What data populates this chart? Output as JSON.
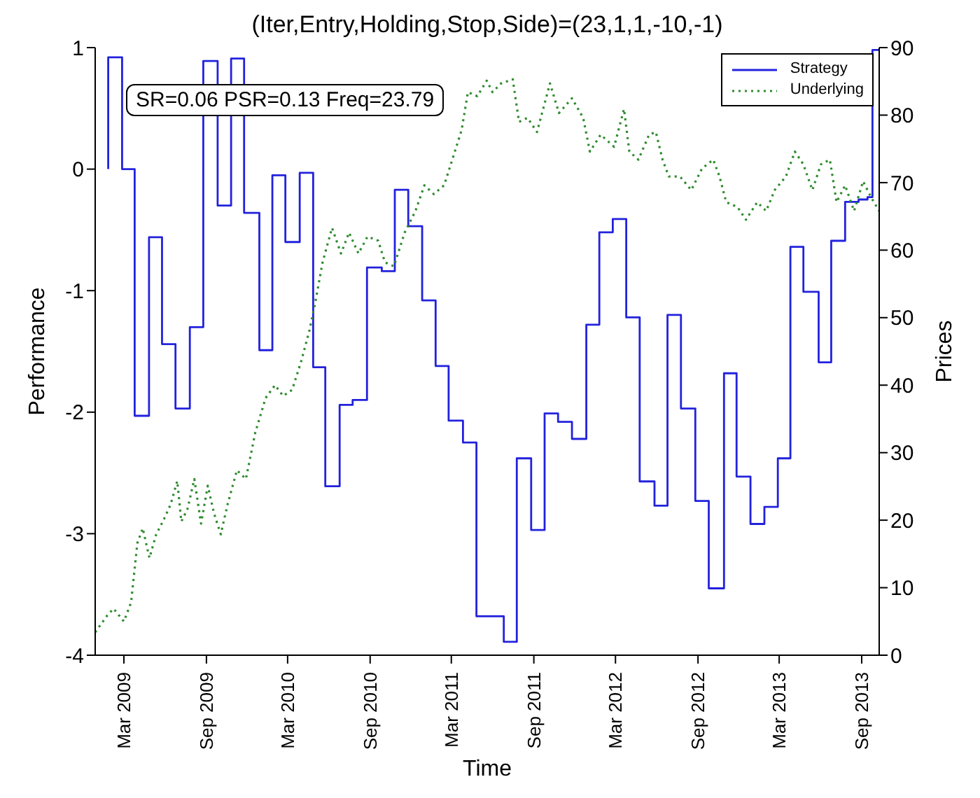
{
  "chart_data": {
    "type": "line",
    "title": "(Iter,Entry,Holding,Stop,Side)=(23,1,1,-10,-1)",
    "xlabel": "Time",
    "ylabel": "Performance",
    "y2label": "Prices",
    "annotations": [
      "SR=0.06 PSR=0.13 Freq=23.79"
    ],
    "xlim": [
      "2008-12-27",
      "2013-10-10"
    ],
    "xticks": [
      {
        "value": "2009-03-01",
        "label": "Mar 2009"
      },
      {
        "value": "2009-09-01",
        "label": "Sep 2009"
      },
      {
        "value": "2010-03-01",
        "label": "Mar 2010"
      },
      {
        "value": "2010-09-01",
        "label": "Sep 2010"
      },
      {
        "value": "2011-03-01",
        "label": "Mar 2011"
      },
      {
        "value": "2011-09-01",
        "label": "Sep 2011"
      },
      {
        "value": "2012-03-01",
        "label": "Mar 2012"
      },
      {
        "value": "2012-09-01",
        "label": "Sep 2012"
      },
      {
        "value": "2013-03-01",
        "label": "Mar 2013"
      },
      {
        "value": "2013-09-01",
        "label": "Sep 2013"
      }
    ],
    "ylim": [
      -4,
      1
    ],
    "yticks": [
      -4,
      -3,
      -2,
      -1,
      0,
      1
    ],
    "y2lim": [
      0,
      90
    ],
    "y2ticks": [
      0,
      10,
      20,
      30,
      40,
      50,
      60,
      70,
      80,
      90
    ],
    "grid": false,
    "legend": "top right",
    "marker": "none",
    "series": [
      {
        "name": "Strategy",
        "type": "step",
        "color": "#2222dd",
        "line_style": "solid",
        "x": [
          "2009-01-25",
          "2009-01-25",
          "2009-02-25",
          "2009-03-25",
          "2009-04-26",
          "2009-05-25",
          "2009-06-24",
          "2009-07-26",
          "2009-08-25",
          "2009-09-26",
          "2009-10-26",
          "2009-11-24",
          "2009-12-28",
          "2010-01-26",
          "2010-02-24",
          "2010-03-28",
          "2010-04-27",
          "2010-05-24",
          "2010-06-25",
          "2010-07-24",
          "2010-08-25",
          "2010-09-27",
          "2010-10-26",
          "2010-11-25",
          "2010-12-26",
          "2011-01-25",
          "2011-02-23",
          "2011-03-27",
          "2011-04-26",
          "2011-06-26",
          "2011-07-25",
          "2011-08-26",
          "2011-09-25",
          "2011-10-25",
          "2011-11-25",
          "2011-12-27",
          "2012-01-25",
          "2012-02-24",
          "2012-03-25",
          "2012-04-24",
          "2012-05-27",
          "2012-06-25",
          "2012-07-25",
          "2012-08-26",
          "2012-09-25",
          "2012-10-29",
          "2012-11-26",
          "2012-12-27",
          "2013-01-27",
          "2013-02-26",
          "2013-03-26",
          "2013-04-24",
          "2013-05-28",
          "2013-06-25",
          "2013-07-26",
          "2013-08-25",
          "2013-09-14",
          "2013-09-25",
          "2013-10-10"
        ],
        "values": [
          0.0,
          0.92,
          0.0,
          -2.03,
          -0.56,
          -1.44,
          -1.97,
          -1.3,
          0.89,
          -0.3,
          0.91,
          -0.36,
          -1.49,
          -0.05,
          -0.6,
          -0.03,
          -1.63,
          -2.61,
          -1.94,
          -1.9,
          -0.81,
          -0.84,
          -0.17,
          -0.47,
          -1.08,
          -1.62,
          -2.07,
          -2.25,
          -3.68,
          -3.89,
          -2.38,
          -2.97,
          -2.01,
          -2.08,
          -2.22,
          -1.28,
          -0.52,
          -0.41,
          -1.22,
          -2.57,
          -2.77,
          -1.2,
          -1.97,
          -2.73,
          -3.45,
          -1.68,
          -2.53,
          -2.92,
          -2.78,
          -2.38,
          -0.64,
          -1.01,
          -1.59,
          -0.59,
          -0.27,
          -0.25,
          -0.23,
          0.98,
          0.98
        ]
      },
      {
        "name": "Underlying",
        "axis": "y2",
        "color": "#2e8b2e",
        "line_style": "dotted",
        "x": [
          "2008-12-27",
          "2009-01-23",
          "2009-02-06",
          "2009-03-01",
          "2009-03-17",
          "2009-03-31",
          "2009-04-12",
          "2009-04-27",
          "2009-05-12",
          "2009-05-29",
          "2009-06-13",
          "2009-06-28",
          "2009-07-07",
          "2009-07-21",
          "2009-08-05",
          "2009-08-20",
          "2009-09-04",
          "2009-09-18",
          "2009-10-03",
          "2009-10-18",
          "2009-11-08",
          "2009-11-28",
          "2009-12-19",
          "2010-01-11",
          "2010-02-01",
          "2010-02-19",
          "2010-03-11",
          "2010-04-01",
          "2010-04-19",
          "2010-05-01",
          "2010-05-18",
          "2010-06-08",
          "2010-06-28",
          "2010-07-16",
          "2010-08-06",
          "2010-08-26",
          "2010-09-19",
          "2010-10-04",
          "2010-10-24",
          "2010-11-17",
          "2010-12-11",
          "2010-12-31",
          "2011-01-21",
          "2011-02-13",
          "2011-03-06",
          "2011-03-24",
          "2011-04-07",
          "2011-04-28",
          "2011-05-19",
          "2011-06-01",
          "2011-06-20",
          "2011-07-16",
          "2011-07-30",
          "2011-08-18",
          "2011-09-08",
          "2011-10-07",
          "2011-10-27",
          "2011-11-25",
          "2011-12-20",
          "2012-01-04",
          "2012-01-28",
          "2012-02-27",
          "2012-03-20",
          "2012-04-01",
          "2012-04-21",
          "2012-05-15",
          "2012-05-30",
          "2012-06-14",
          "2012-06-28",
          "2012-07-23",
          "2012-08-17",
          "2012-09-10",
          "2012-10-05",
          "2012-10-19",
          "2012-11-03",
          "2012-11-28",
          "2012-12-17",
          "2013-01-11",
          "2013-01-31",
          "2013-02-19",
          "2013-03-16",
          "2013-04-05",
          "2013-04-24",
          "2013-05-14",
          "2013-06-02",
          "2013-06-22",
          "2013-07-07",
          "2013-07-26",
          "2013-08-15",
          "2013-09-04",
          "2013-09-23",
          "2013-10-10"
        ],
        "values": [
          3.4,
          5.9,
          6.9,
          5.0,
          7.8,
          16.6,
          18.8,
          14.4,
          17.9,
          20.1,
          22.3,
          25.8,
          19.8,
          21.7,
          26.1,
          19.5,
          25.1,
          21.0,
          17.9,
          22.3,
          27.4,
          26.1,
          33.0,
          38.1,
          40.0,
          38.4,
          39.3,
          43.7,
          48.2,
          52.0,
          58.2,
          63.3,
          59.5,
          62.6,
          59.5,
          62.0,
          61.4,
          58.2,
          57.6,
          62.6,
          65.8,
          69.6,
          68.3,
          69.6,
          74.0,
          77.8,
          83.4,
          82.8,
          85.1,
          83.4,
          84.7,
          85.3,
          79.0,
          79.6,
          77.5,
          84.7,
          80.3,
          82.5,
          79.6,
          74.6,
          77.1,
          75.3,
          80.9,
          74.6,
          73.4,
          77.1,
          77.5,
          73.4,
          70.9,
          70.9,
          68.9,
          72.1,
          73.4,
          70.9,
          67.1,
          66.4,
          64.5,
          67.1,
          65.8,
          68.9,
          70.9,
          74.6,
          72.7,
          68.9,
          72.7,
          73.4,
          67.1,
          69.6,
          65.8,
          70.2,
          67.7,
          65.8
        ]
      }
    ]
  }
}
